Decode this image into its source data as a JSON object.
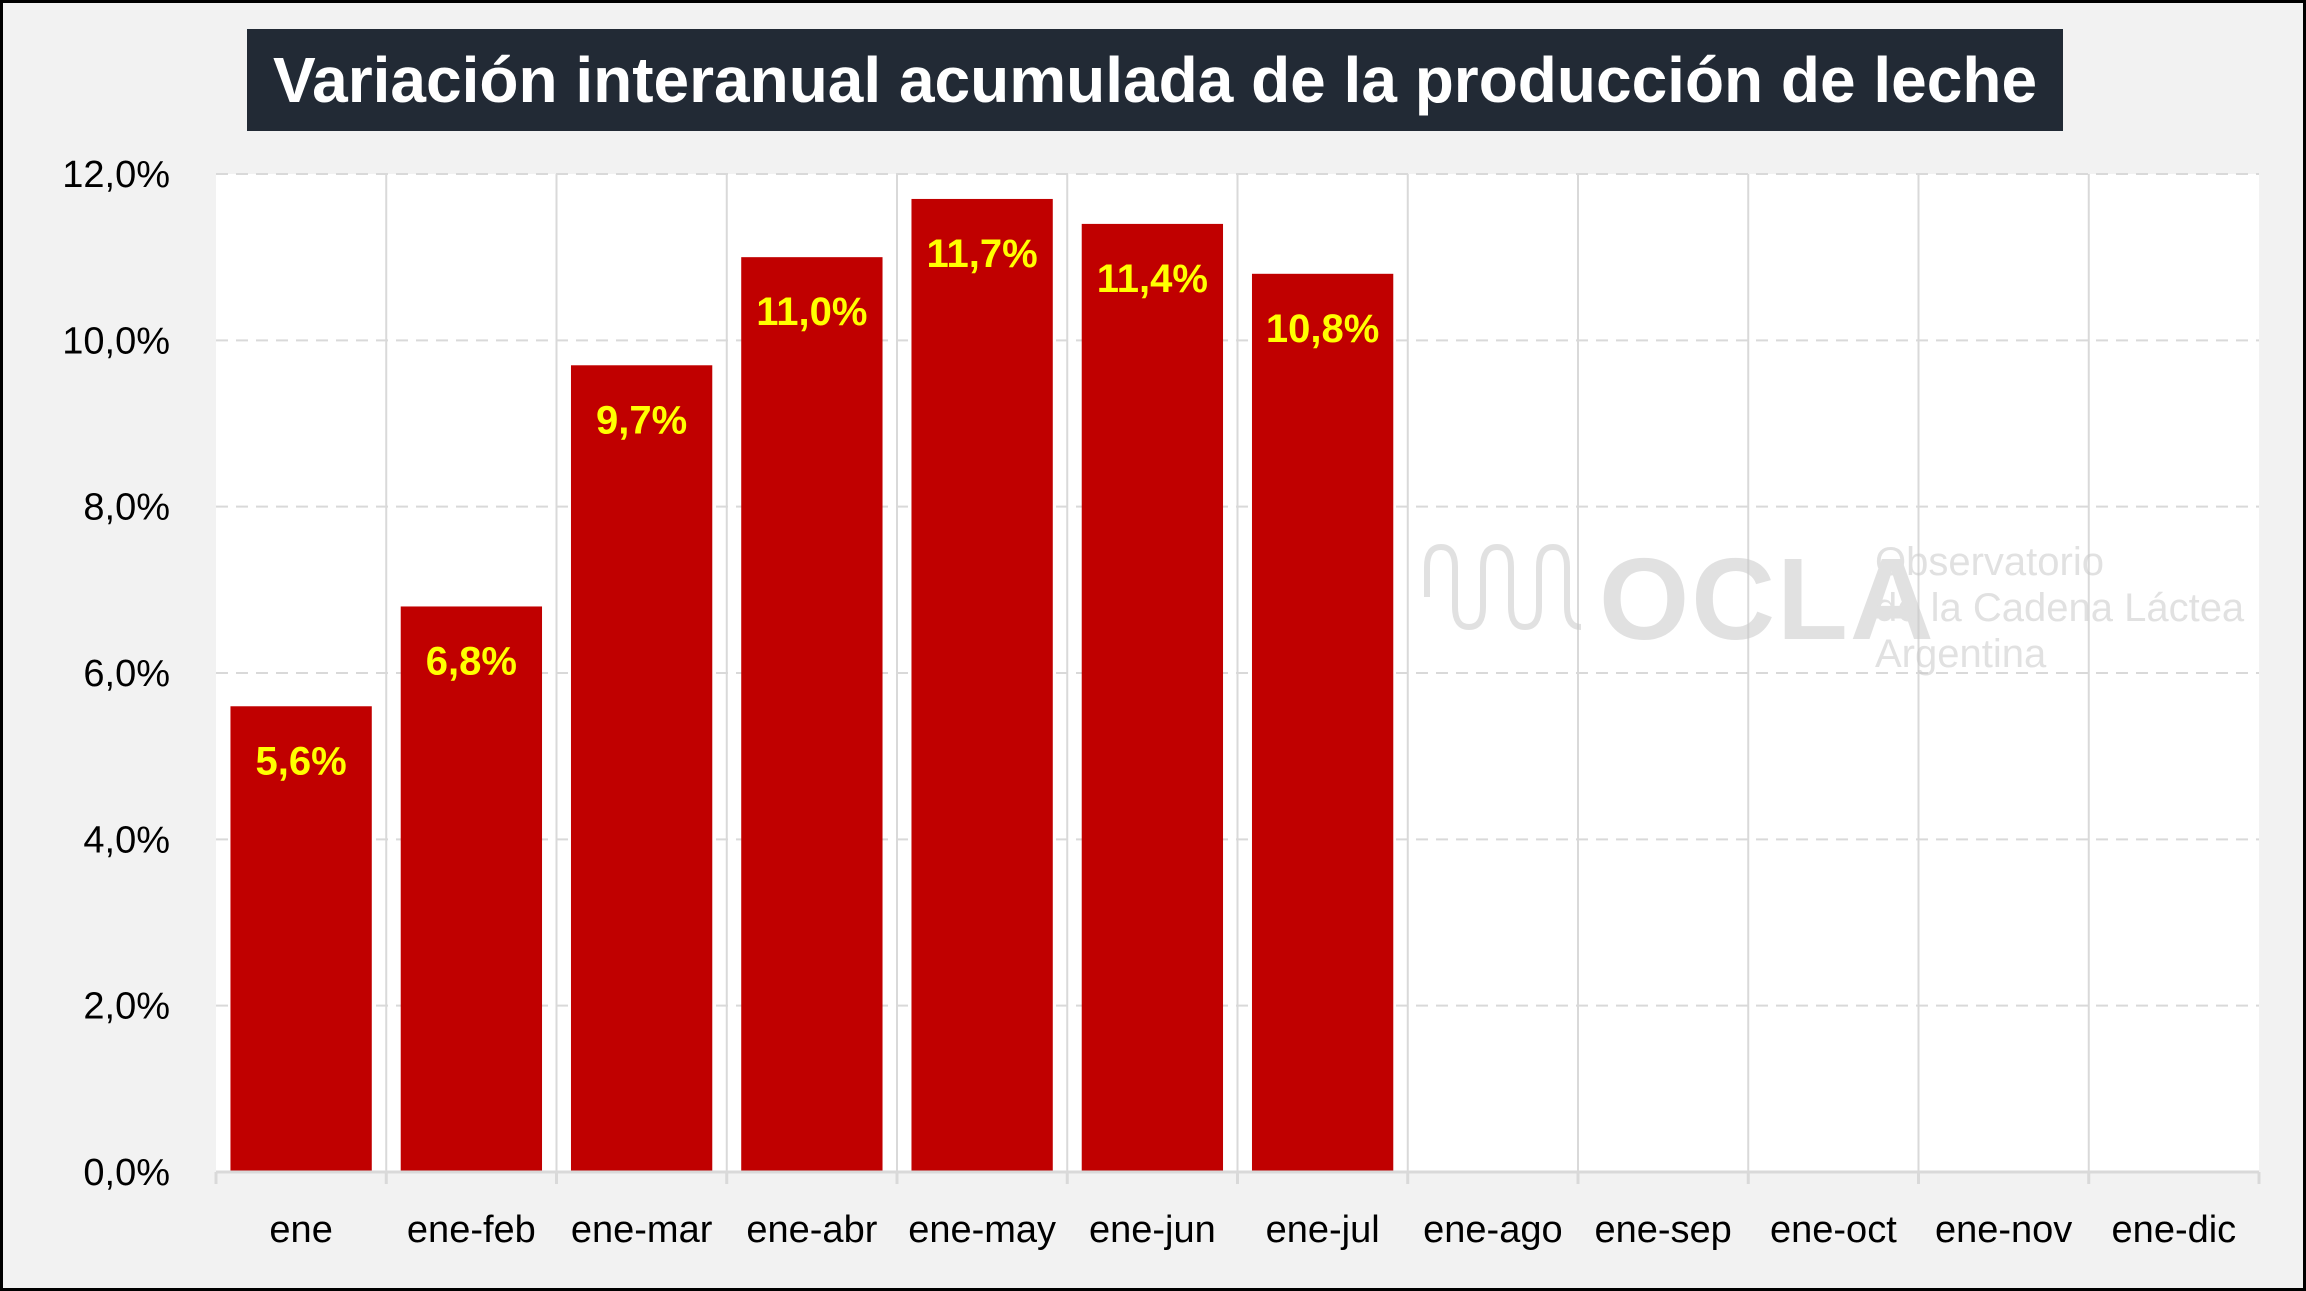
{
  "chart_data": {
    "type": "bar",
    "title": "Variación interanual acumulada de la producción de leche",
    "categories": [
      "ene",
      "ene-feb",
      "ene-mar",
      "ene-abr",
      "ene-may",
      "ene-jun",
      "ene-jul",
      "ene-ago",
      "ene-sep",
      "ene-oct",
      "ene-nov",
      "ene-dic"
    ],
    "values": [
      5.6,
      6.8,
      9.7,
      11.0,
      11.7,
      11.4,
      10.8,
      null,
      null,
      null,
      null,
      null
    ],
    "value_labels": [
      "5,6%",
      "6,8%",
      "9,7%",
      "11,0%",
      "11,7%",
      "11,4%",
      "10,8%",
      "",
      "",
      "",
      "",
      ""
    ],
    "ylim": [
      0,
      12
    ],
    "yticks": [
      0,
      2,
      4,
      6,
      8,
      10,
      12
    ],
    "ytick_labels": [
      "0,0%",
      "2,0%",
      "4,0%",
      "6,0%",
      "8,0%",
      "10,0%",
      "12,0%"
    ],
    "xlabel": "",
    "ylabel": "",
    "grid": true,
    "legend": "none",
    "bar_color": "#c00000",
    "value_label_color": "#ffff00"
  },
  "watermark": {
    "acronym": "OCLA",
    "lines": [
      "Observatorio",
      "de la Cadena Láctea",
      "Argentina"
    ],
    "icon": "milk-wave-logo-icon"
  },
  "colors": {
    "frame_background": "#f2f2f2",
    "plot_background": "#ffffff",
    "title_background": "#222a35",
    "title_text": "#ffffff"
  }
}
